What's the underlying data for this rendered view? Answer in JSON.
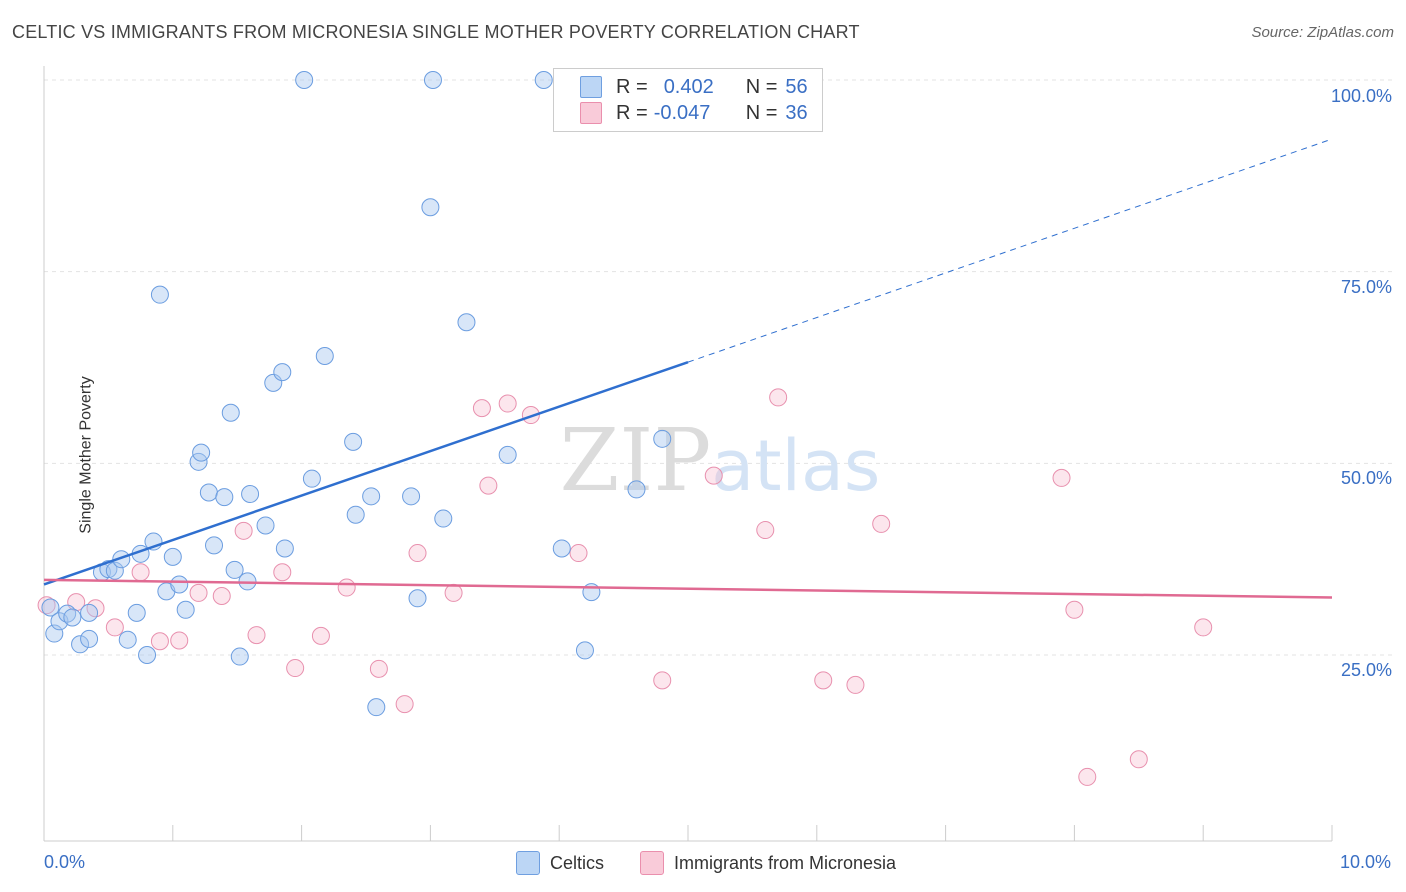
{
  "title": "CELTIC VS IMMIGRANTS FROM MICRONESIA SINGLE MOTHER POVERTY CORRELATION CHART",
  "source": "Source: ZipAtlas.com",
  "watermark": "ZIPatlas",
  "legend_top": {
    "rows": [
      {
        "r_label": "R =",
        "r_value": "0.402",
        "n_label": "N =",
        "n_value": "56"
      },
      {
        "r_label": "R =",
        "r_value": "-0.047",
        "n_label": "N =",
        "n_value": "36"
      }
    ]
  },
  "bottom_legend": [
    "Celtics",
    "Immigrants from Micronesia"
  ],
  "chart_data": {
    "type": "scatter",
    "title": "CELTIC VS IMMIGRANTS FROM MICRONESIA SINGLE MOTHER POVERTY CORRELATION CHART",
    "xlabel": "",
    "ylabel": "Single Mother Poverty",
    "xlim": [
      0,
      10
    ],
    "ylim": [
      0,
      105
    ],
    "x_tick_labels": [
      "0.0%",
      "10.0%"
    ],
    "y_ticks": [
      {
        "value": 25,
        "label": "25.0%"
      },
      {
        "value": 50,
        "label": "50.0%"
      },
      {
        "value": 75,
        "label": "75.0%"
      },
      {
        "value": 100,
        "label": "100.0%"
      }
    ],
    "grid": true,
    "colors": {
      "celtics": "#a8c8f0",
      "celtics_line": "#2f6fcf",
      "micronesia": "#f5b8cc",
      "micronesia_line": "#e06a92",
      "axis_label": "#3a6fc4"
    },
    "series": [
      {
        "name": "Celtics",
        "r": 0.402,
        "n": 56,
        "trend": {
          "x_start": 0.0,
          "y_start": 34.2,
          "x_solid_end": 5.0,
          "y_solid_end": 63.2,
          "x_dash_end": 10.0,
          "y_dash_end": 92.3
        },
        "points": [
          [
            0.05,
            31.2
          ],
          [
            0.08,
            27.8
          ],
          [
            0.12,
            29.4
          ],
          [
            0.18,
            30.4
          ],
          [
            0.22,
            29.9
          ],
          [
            0.28,
            26.4
          ],
          [
            0.35,
            27.1
          ],
          [
            0.35,
            30.5
          ],
          [
            0.45,
            35.8
          ],
          [
            0.5,
            36.2
          ],
          [
            0.55,
            36
          ],
          [
            0.6,
            37.5
          ],
          [
            0.65,
            27
          ],
          [
            0.72,
            30.5
          ],
          [
            0.75,
            38.2
          ],
          [
            0.8,
            25
          ],
          [
            0.85,
            39.8
          ],
          [
            0.9,
            72
          ],
          [
            0.95,
            33.3
          ],
          [
            1.0,
            37.8
          ],
          [
            1.05,
            34.2
          ],
          [
            1.1,
            30.9
          ],
          [
            1.2,
            50.2
          ],
          [
            1.22,
            51.4
          ],
          [
            1.28,
            46.2
          ],
          [
            1.32,
            39.3
          ],
          [
            1.4,
            45.6
          ],
          [
            1.45,
            56.6
          ],
          [
            1.48,
            36.1
          ],
          [
            1.52,
            24.8
          ],
          [
            1.58,
            34.6
          ],
          [
            1.6,
            46
          ],
          [
            1.72,
            41.9
          ],
          [
            1.78,
            60.5
          ],
          [
            1.85,
            61.9
          ],
          [
            1.87,
            38.9
          ],
          [
            2.02,
            100
          ],
          [
            2.08,
            48
          ],
          [
            2.18,
            64
          ],
          [
            2.4,
            52.8
          ],
          [
            2.42,
            43.3
          ],
          [
            2.54,
            45.7
          ],
          [
            2.58,
            18.2
          ],
          [
            2.85,
            45.7
          ],
          [
            2.9,
            32.4
          ],
          [
            3.0,
            83.4
          ],
          [
            3.02,
            100
          ],
          [
            3.1,
            42.8
          ],
          [
            3.28,
            68.4
          ],
          [
            3.6,
            51.1
          ],
          [
            3.88,
            100
          ],
          [
            4.02,
            38.9
          ],
          [
            4.2,
            25.6
          ],
          [
            4.25,
            33.2
          ],
          [
            4.6,
            46.6
          ],
          [
            4.8,
            53.2
          ]
        ]
      },
      {
        "name": "Immigrants from Micronesia",
        "r": -0.047,
        "n": 36,
        "trend": {
          "x_start": 0.0,
          "y_start": 34.8,
          "x_end": 10.0,
          "y_end": 32.5
        },
        "points": [
          [
            0.02,
            31.5
          ],
          [
            0.25,
            31.9
          ],
          [
            0.4,
            31.1
          ],
          [
            0.55,
            28.6
          ],
          [
            0.75,
            35.8
          ],
          [
            0.9,
            26.8
          ],
          [
            1.05,
            26.9
          ],
          [
            1.2,
            33.1
          ],
          [
            1.38,
            32.7
          ],
          [
            1.55,
            41.2
          ],
          [
            1.65,
            27.6
          ],
          [
            1.85,
            35.8
          ],
          [
            1.95,
            23.3
          ],
          [
            2.15,
            27.5
          ],
          [
            2.35,
            33.8
          ],
          [
            2.6,
            23.2
          ],
          [
            2.8,
            18.6
          ],
          [
            2.9,
            38.3
          ],
          [
            3.18,
            33.1
          ],
          [
            3.4,
            57.2
          ],
          [
            3.45,
            47.1
          ],
          [
            3.6,
            57.8
          ],
          [
            3.78,
            56.3
          ],
          [
            4.15,
            38.3
          ],
          [
            4.8,
            21.7
          ],
          [
            5.2,
            48.4
          ],
          [
            5.6,
            41.3
          ],
          [
            5.7,
            58.6
          ],
          [
            6.05,
            21.7
          ],
          [
            6.3,
            21.1
          ],
          [
            6.5,
            42.1
          ],
          [
            7.9,
            48.1
          ],
          [
            8.0,
            30.9
          ],
          [
            8.1,
            9.1
          ],
          [
            8.5,
            11.4
          ],
          [
            9.0,
            28.6
          ]
        ]
      }
    ]
  }
}
